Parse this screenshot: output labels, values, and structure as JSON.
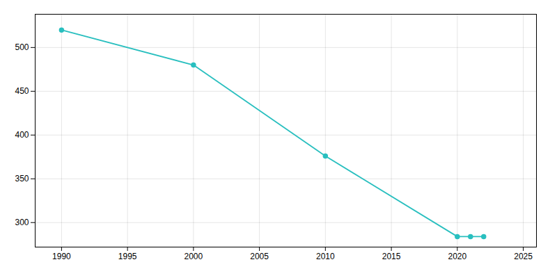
{
  "chart_data": {
    "type": "line",
    "x": [
      1990,
      2000,
      2010,
      2020,
      2021,
      2022
    ],
    "values": [
      520,
      480,
      376,
      284,
      284,
      284
    ],
    "color": "#29BFBF",
    "marker": "circle",
    "xlim": [
      1988,
      2026
    ],
    "ylim": [
      272,
      538
    ],
    "xticks": [
      1990,
      1995,
      2000,
      2005,
      2010,
      2015,
      2020,
      2025
    ],
    "yticks": [
      300,
      350,
      400,
      450,
      500
    ],
    "grid": true
  }
}
